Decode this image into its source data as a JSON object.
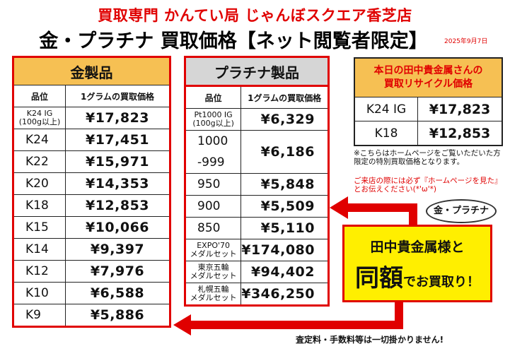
{
  "header": {
    "shop": "買取専門 かんてい局 じゃんぼスクエア香芝店",
    "title": "金・プラチナ 買取価格【ネット閲覧者限定】",
    "date": "2025年9月7日"
  },
  "gold": {
    "title": "金製品",
    "col_grade": "品位",
    "col_price": "1グラムの買取価格",
    "rows": [
      {
        "grade": "K24 IG\n(100g以上)",
        "price": "¥17,823"
      },
      {
        "grade": "K24",
        "price": "¥17,451"
      },
      {
        "grade": "K22",
        "price": "¥15,971"
      },
      {
        "grade": "K20",
        "price": "¥14,353"
      },
      {
        "grade": "K18",
        "price": "¥12,853"
      },
      {
        "grade": "K15",
        "price": "¥10,066"
      },
      {
        "grade": "K14",
        "price": "¥9,397"
      },
      {
        "grade": "K12",
        "price": "¥7,976"
      },
      {
        "grade": "K10",
        "price": "¥6,588"
      },
      {
        "grade": "K9",
        "price": "¥5,886"
      }
    ]
  },
  "platinum": {
    "title": "プラチナ製品",
    "col_grade": "品位",
    "col_price": "1グラムの買取価格",
    "rows": [
      {
        "grade": "Pt1000 IG\n(100g以上)",
        "price": "¥6,329"
      },
      {
        "grade": "1000",
        "price": "¥6,186"
      },
      {
        "grade": "-999",
        "price": ""
      },
      {
        "grade": "950",
        "price": "¥5,848"
      },
      {
        "grade": "900",
        "price": "¥5,509"
      },
      {
        "grade": "850",
        "price": "¥5,110"
      },
      {
        "grade": "EXPO'70\nメダルセット",
        "price": "¥174,080"
      },
      {
        "grade": "東京五輪\nメダルセット",
        "price": "¥94,402"
      },
      {
        "grade": "札幌五輪\nメダルセット",
        "price": "¥346,250"
      }
    ]
  },
  "recycle": {
    "title": "本日の田中貴金属さんの\n買取リサイクル価格",
    "rows": [
      {
        "grade": "K24 IG",
        "price": "¥17,823"
      },
      {
        "grade": "K18",
        "price": "¥12,853"
      }
    ],
    "note1": "※こちらはホームページをご覧いただいた方限定の特別買取価格となります。",
    "note2": "ご来店の際には必ず『ホームページを見た』とお伝えください(*'ω'*)"
  },
  "callout": {
    "bubble": "金・プラチナ",
    "line1": "田中貴金属様と",
    "big": "同額",
    "small": "でお買取り！"
  },
  "footer": "査定料・手数料等は一切掛かりません!",
  "colors": {
    "red": "#e00000",
    "gold_header": "#f6c053",
    "plat_header": "#d6d6d6",
    "callout_bg": "#ffef00"
  }
}
